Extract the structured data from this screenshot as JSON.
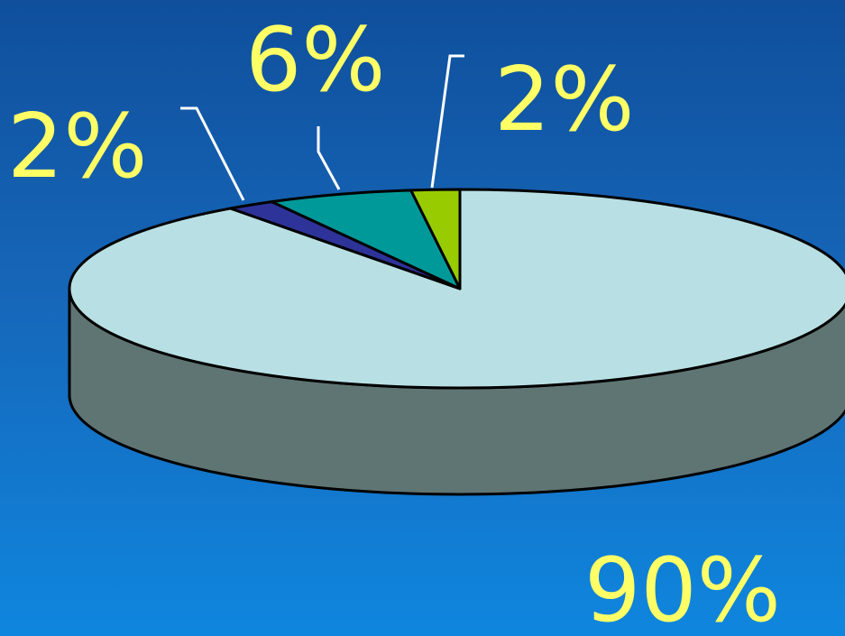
{
  "chart_data": {
    "type": "pie",
    "style": "3d",
    "slices": [
      {
        "label": "90%",
        "value": 90,
        "color": "#b8e0e4",
        "side_color": "#5f7573"
      },
      {
        "label": "2%",
        "value": 2,
        "color": "#2d3399",
        "side_color": "#1f2370"
      },
      {
        "label": "6%",
        "value": 6,
        "color": "#009999",
        "side_color": "#006b6b"
      },
      {
        "label": "2%",
        "value": 2,
        "color": "#99cc00",
        "side_color": "#6b8f00"
      }
    ],
    "legend": "none",
    "label_color": "#ffff66"
  }
}
